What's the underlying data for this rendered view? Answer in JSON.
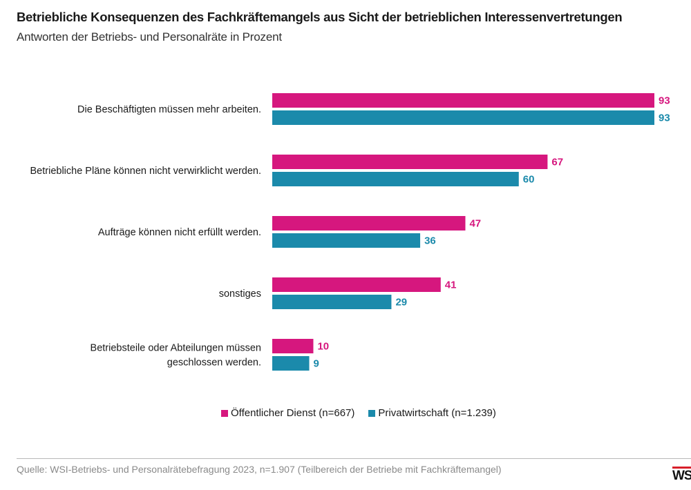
{
  "title": "Betriebliche Konsequenzen des Fachkräftemangels aus Sicht der betrieblichen Interessenvertretungen",
  "subtitle": "Antworten der Betriebs- und Personalräte in Prozent",
  "source": "Quelle: WSI-Betriebs- und Personalrätebefragung 2023, n=1.907 (Teilbereich der Betriebe mit Fachkräftemangel)",
  "logo": "WSI",
  "colors": {
    "oeffentlich": "#d6177e",
    "privat": "#1b8aab"
  },
  "chart_data": {
    "type": "bar",
    "orientation": "horizontal",
    "categories": [
      [
        "Die Beschäftigten müssen mehr arbeiten."
      ],
      [
        "Betriebliche Pläne können nicht verwirklicht werden."
      ],
      [
        "Aufträge können nicht erfüllt werden."
      ],
      [
        "sonstiges"
      ],
      [
        "Betriebsteile oder Abteilungen müssen",
        "geschlossen werden."
      ]
    ],
    "series": [
      {
        "name": "Öffentlicher Dienst (n=667)",
        "values": [
          93,
          67,
          47,
          41,
          10
        ]
      },
      {
        "name": "Privatwirtschaft (n=1.239)",
        "values": [
          93,
          60,
          36,
          29,
          9
        ]
      }
    ],
    "xlim": [
      0,
      93
    ],
    "grid": false,
    "legend_position": "bottom"
  }
}
